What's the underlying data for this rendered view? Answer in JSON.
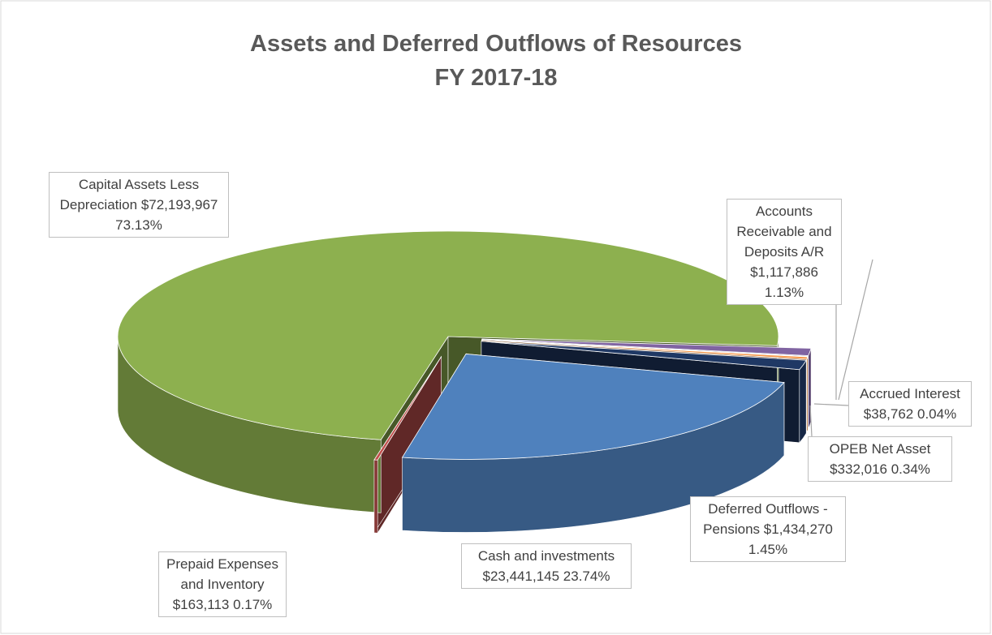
{
  "chart_data": {
    "type": "pie",
    "title": "Assets and Deferred Outflows of Resources",
    "subtitle": "FY 2017-18",
    "categories": [
      "Capital Assets Less Depreciation",
      "Accounts Receivable and Deposits A/R",
      "Accrued Interest",
      "OPEB Net Asset",
      "Deferred Outflows - Pensions",
      "Cash and investments",
      "Prepaid Expenses and Inventory"
    ],
    "amount_labels": [
      "$72,193,967",
      "$1,117,886",
      "$38,762",
      "$332,016",
      "$1,434,270",
      "$23,441,145",
      "$163,113"
    ],
    "values": [
      73.13,
      1.13,
      0.04,
      0.34,
      1.45,
      23.74,
      0.17
    ],
    "value_labels": [
      "73.13%",
      "1.13%",
      "0.04%",
      "0.34%",
      "1.45%",
      "23.74%",
      "0.17%"
    ],
    "colors": [
      "#8db04f",
      "#8064a2",
      "#4bacc6",
      "#f79646",
      "#1f3864",
      "#4f81bd",
      "#c0504d"
    ]
  }
}
